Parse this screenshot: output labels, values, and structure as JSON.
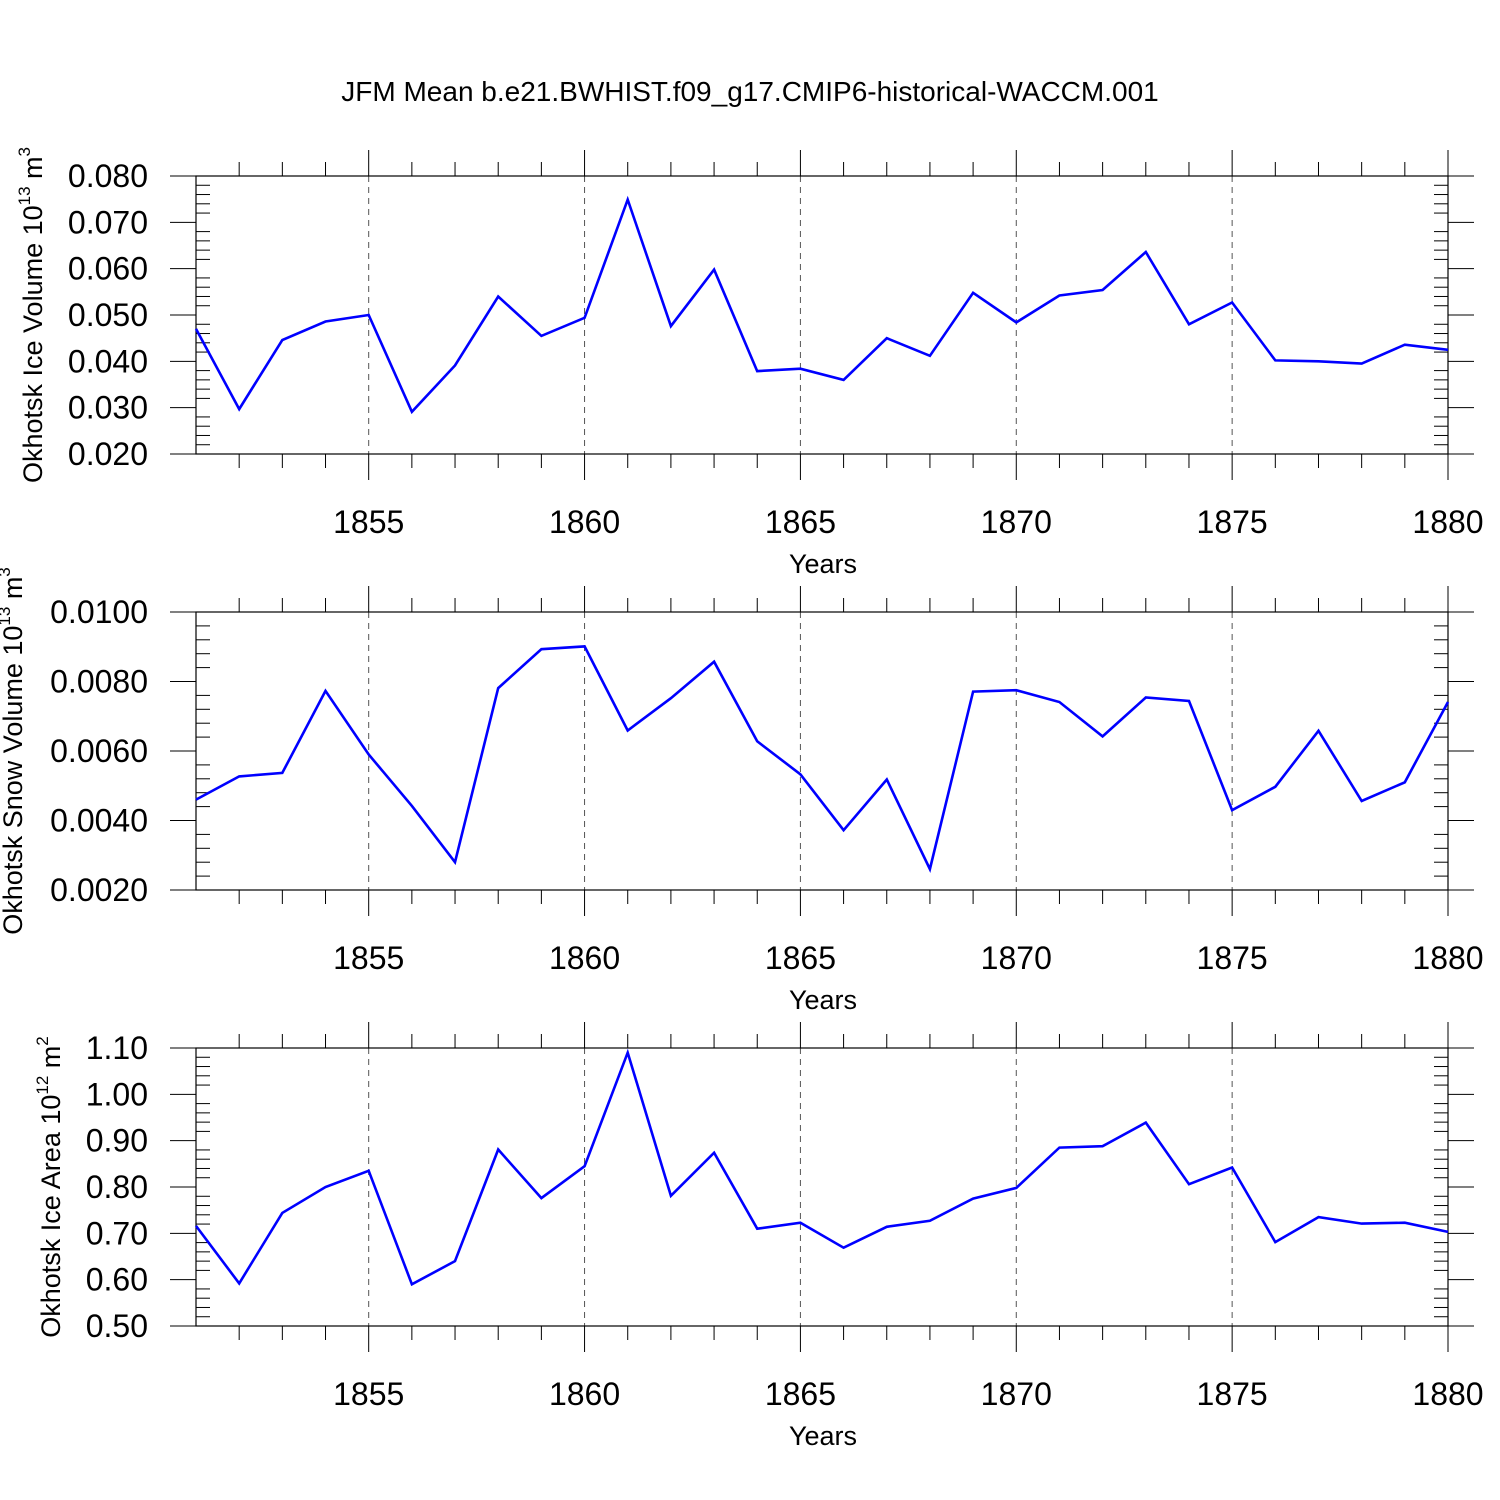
{
  "title": "JFM Mean b.e21.BWHIST.f09_g17.CMIP6-historical-WACCM.001",
  "line_color": "#0000ff",
  "chart_data": [
    {
      "type": "line",
      "ylabel": "Okhotsk Ice Volume 10",
      "ylabel_exp": "13",
      "ylabel_unit": " m",
      "ylabel_unit_exp": "3",
      "xlabel": "Years",
      "xlim": [
        1851,
        1880
      ],
      "ylim": [
        0.02,
        0.08
      ],
      "yticks": [
        "0.020",
        "0.030",
        "0.040",
        "0.050",
        "0.060",
        "0.070",
        "0.080"
      ],
      "xticks": [
        "1855",
        "1860",
        "1865",
        "1870",
        "1875",
        "1880"
      ],
      "x": [
        1851,
        1852,
        1853,
        1854,
        1855,
        1856,
        1857,
        1858,
        1859,
        1860,
        1861,
        1862,
        1863,
        1864,
        1865,
        1866,
        1867,
        1868,
        1869,
        1870,
        1871,
        1872,
        1873,
        1874,
        1875,
        1876,
        1877,
        1878,
        1879,
        1880
      ],
      "values": [
        0.047,
        0.0297,
        0.0446,
        0.0486,
        0.05,
        0.0291,
        0.0391,
        0.054,
        0.0455,
        0.0494,
        0.0749,
        0.0476,
        0.0598,
        0.0379,
        0.0384,
        0.036,
        0.045,
        0.0412,
        0.0548,
        0.0484,
        0.0542,
        0.0554,
        0.0636,
        0.048,
        0.0527,
        0.0402,
        0.04,
        0.0395,
        0.0436,
        0.0425
      ]
    },
    {
      "type": "line",
      "ylabel": "Okhotsk Snow Volume 10",
      "ylabel_exp": "13",
      "ylabel_unit": " m",
      "ylabel_unit_exp": "3",
      "xlabel": "Years",
      "xlim": [
        1851,
        1880
      ],
      "ylim": [
        0.002,
        0.01
      ],
      "yticks": [
        "0.0020",
        "0.0040",
        "0.0060",
        "0.0080",
        "0.0100"
      ],
      "xticks": [
        "1855",
        "1860",
        "1865",
        "1870",
        "1875",
        "1880"
      ],
      "x": [
        1851,
        1852,
        1853,
        1854,
        1855,
        1856,
        1857,
        1858,
        1859,
        1860,
        1861,
        1862,
        1863,
        1864,
        1865,
        1866,
        1867,
        1868,
        1869,
        1870,
        1871,
        1872,
        1873,
        1874,
        1875,
        1876,
        1877,
        1878,
        1879,
        1880
      ],
      "values": [
        0.0046,
        0.00527,
        0.00537,
        0.00773,
        0.0059,
        0.00442,
        0.0028,
        0.00781,
        0.00893,
        0.00901,
        0.00659,
        0.00752,
        0.00857,
        0.00628,
        0.00533,
        0.00372,
        0.00518,
        0.0026,
        0.00771,
        0.00775,
        0.00741,
        0.00642,
        0.00754,
        0.00744,
        0.0043,
        0.00497,
        0.00658,
        0.00456,
        0.0051,
        0.00741
      ]
    },
    {
      "type": "line",
      "ylabel": "Okhotsk Ice Area 10",
      "ylabel_exp": "12",
      "ylabel_unit": " m",
      "ylabel_unit_exp": "2",
      "xlabel": "Years",
      "xlim": [
        1851,
        1880
      ],
      "ylim": [
        0.5,
        1.1
      ],
      "yticks": [
        "0.50",
        "0.60",
        "0.70",
        "0.80",
        "0.90",
        "1.00",
        "1.10"
      ],
      "xticks": [
        "1855",
        "1860",
        "1865",
        "1870",
        "1875",
        "1880"
      ],
      "x": [
        1851,
        1852,
        1853,
        1854,
        1855,
        1856,
        1857,
        1858,
        1859,
        1860,
        1861,
        1862,
        1863,
        1864,
        1865,
        1866,
        1867,
        1868,
        1869,
        1870,
        1871,
        1872,
        1873,
        1874,
        1875,
        1876,
        1877,
        1878,
        1879,
        1880
      ],
      "values": [
        0.716,
        0.592,
        0.744,
        0.8,
        0.835,
        0.59,
        0.64,
        0.881,
        0.776,
        0.845,
        1.09,
        0.781,
        0.874,
        0.71,
        0.723,
        0.669,
        0.714,
        0.727,
        0.775,
        0.798,
        0.885,
        0.888,
        0.939,
        0.806,
        0.842,
        0.681,
        0.735,
        0.721,
        0.723,
        0.703
      ]
    }
  ]
}
